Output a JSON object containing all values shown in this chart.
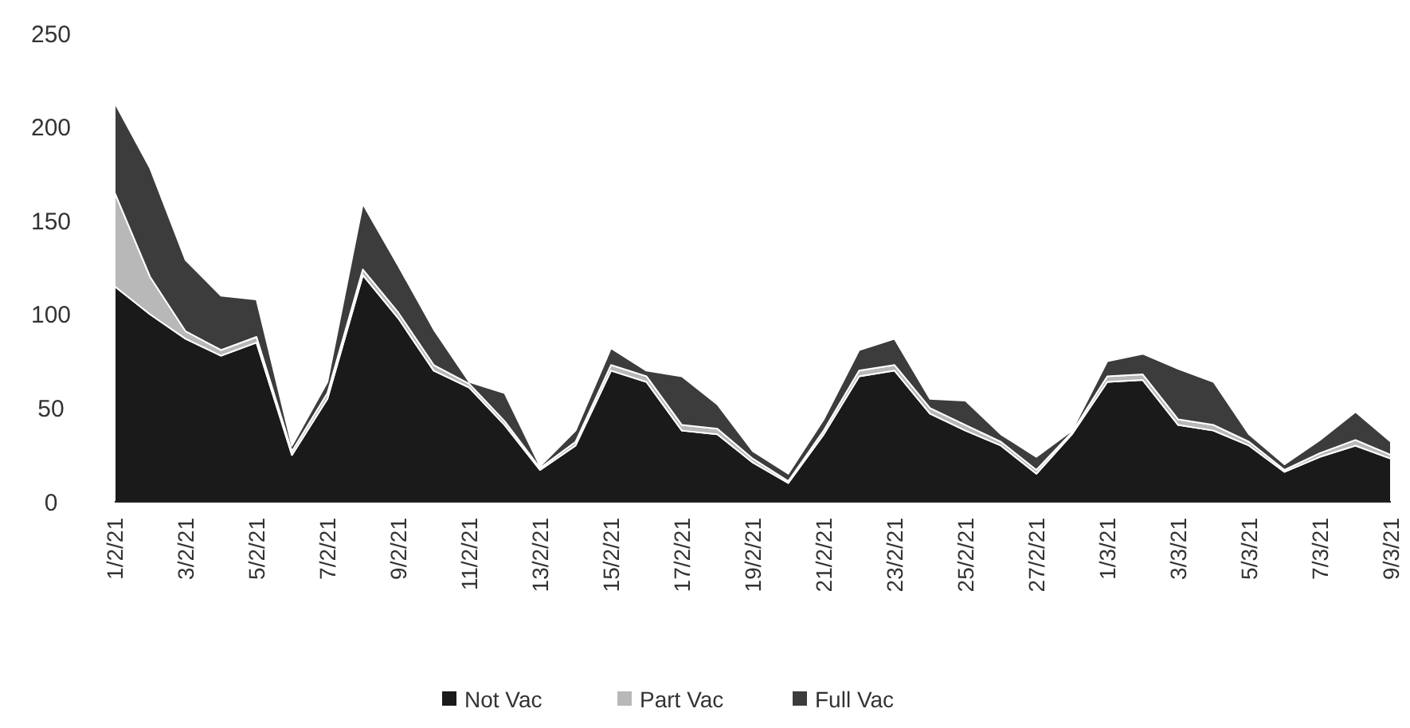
{
  "chart_data": {
    "type": "area",
    "stacked": true,
    "categories": [
      "1/2/21",
      null,
      "3/2/21",
      null,
      "5/2/21",
      null,
      "7/2/21",
      null,
      "9/2/21",
      null,
      "11/2/21",
      null,
      "13/2/21",
      null,
      "15/2/21",
      null,
      "17/2/21",
      null,
      "19/2/21",
      null,
      "21/2/21",
      null,
      "23/2/21",
      null,
      "25/2/21",
      null,
      "27/2/21",
      null,
      "1/3/21",
      null,
      "3/3/21",
      null,
      "5/3/21",
      null,
      "7/3/21",
      null,
      "9/3/21"
    ],
    "series": [
      {
        "name": "Not Vac",
        "color": "#1a1a1a",
        "values": [
          115,
          100,
          87,
          78,
          85,
          25,
          55,
          121,
          98,
          70,
          61,
          41,
          17,
          30,
          70,
          64,
          38,
          36,
          21,
          10,
          36,
          67,
          70,
          47,
          38,
          30,
          15,
          36,
          64,
          65,
          41,
          38,
          30,
          16,
          24,
          30,
          23
        ]
      },
      {
        "name": "Part Vac",
        "color": "#b8b8b8",
        "values": [
          50,
          20,
          4,
          3,
          3,
          2,
          3,
          3,
          3,
          3,
          2,
          2,
          1,
          2,
          3,
          3,
          3,
          3,
          2,
          1,
          2,
          3,
          3,
          3,
          3,
          2,
          2,
          1,
          3,
          3,
          3,
          3,
          2,
          1,
          2,
          3,
          2
        ]
      },
      {
        "name": "Full Vac",
        "color": "#3c3c3c",
        "values": [
          48,
          58,
          38,
          29,
          20,
          3,
          6,
          35,
          25,
          19,
          1,
          15,
          1,
          6,
          9,
          3,
          26,
          13,
          4,
          4,
          6,
          11,
          14,
          5,
          13,
          4,
          7,
          1,
          8,
          11,
          27,
          23,
          4,
          3,
          7,
          15,
          7
        ]
      }
    ],
    "ylim": [
      0,
      250
    ],
    "yticks": [
      0,
      50,
      100,
      150,
      200,
      250
    ],
    "grid": false,
    "legend": "bottom"
  }
}
